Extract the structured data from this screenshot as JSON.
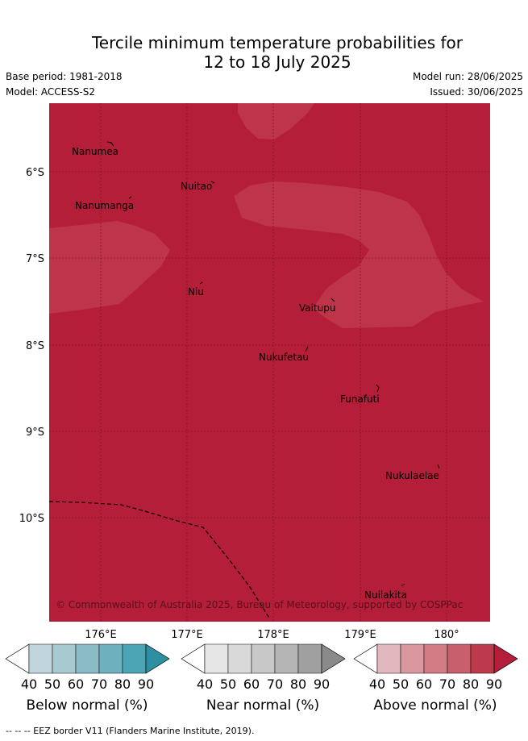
{
  "title": {
    "line1": "Tercile minimum temperature probabilities for",
    "line2": "12 to 18 July 2025"
  },
  "meta": {
    "base_period": "Base period: 1981-2018",
    "model": "Model: ACCESS-S2",
    "model_run": "Model run: 28/06/2025",
    "issued": "Issued: 30/06/2025"
  },
  "map": {
    "lat_ticks": [
      "6°S",
      "7°S",
      "8°S",
      "9°S",
      "10°S"
    ],
    "lon_ticks": [
      "176°E",
      "177°E",
      "178°E",
      "179°E",
      "180°"
    ],
    "background_color": "#b41e38",
    "lighter_region_color": "#be3549",
    "eez_border_style": "dashed",
    "islands": [
      "Nanumea",
      "Nuitao",
      "Nanumanga",
      "Niu",
      "Vaitupu",
      "Nukufetau",
      "Funafuti",
      "Nukulaelae",
      "Nuilakita"
    ],
    "copyright": "© Commonwealth of Australia 2025, Bureau of Meteorology, supported by COSPPac"
  },
  "legends": [
    {
      "label": "Below normal (%)",
      "ticks": [
        "40",
        "50",
        "60",
        "70",
        "80",
        "90"
      ],
      "colors": [
        "#ffffff",
        "#c0d6dc",
        "#a8c9cf",
        "#8bbbc6",
        "#6fb0bf",
        "#4ba5b5",
        "#2e8fa2"
      ]
    },
    {
      "label": "Near normal (%)",
      "ticks": [
        "40",
        "50",
        "60",
        "70",
        "80",
        "90"
      ],
      "colors": [
        "#ffffff",
        "#e6e6e6",
        "#d9d9d9",
        "#c8c8c8",
        "#b5b5b5",
        "#a0a0a0",
        "#8a8a8a"
      ]
    },
    {
      "label": "Above normal (%)",
      "ticks": [
        "40",
        "50",
        "60",
        "70",
        "80",
        "90"
      ],
      "colors": [
        "#ffffff",
        "#e2b8be",
        "#d9979f",
        "#d17c85",
        "#c75f6c",
        "#bd3a4d",
        "#b41e38"
      ]
    }
  ],
  "footer": "-- -- -- EEZ border V11 (Flanders Marine Institute, 2019)."
}
